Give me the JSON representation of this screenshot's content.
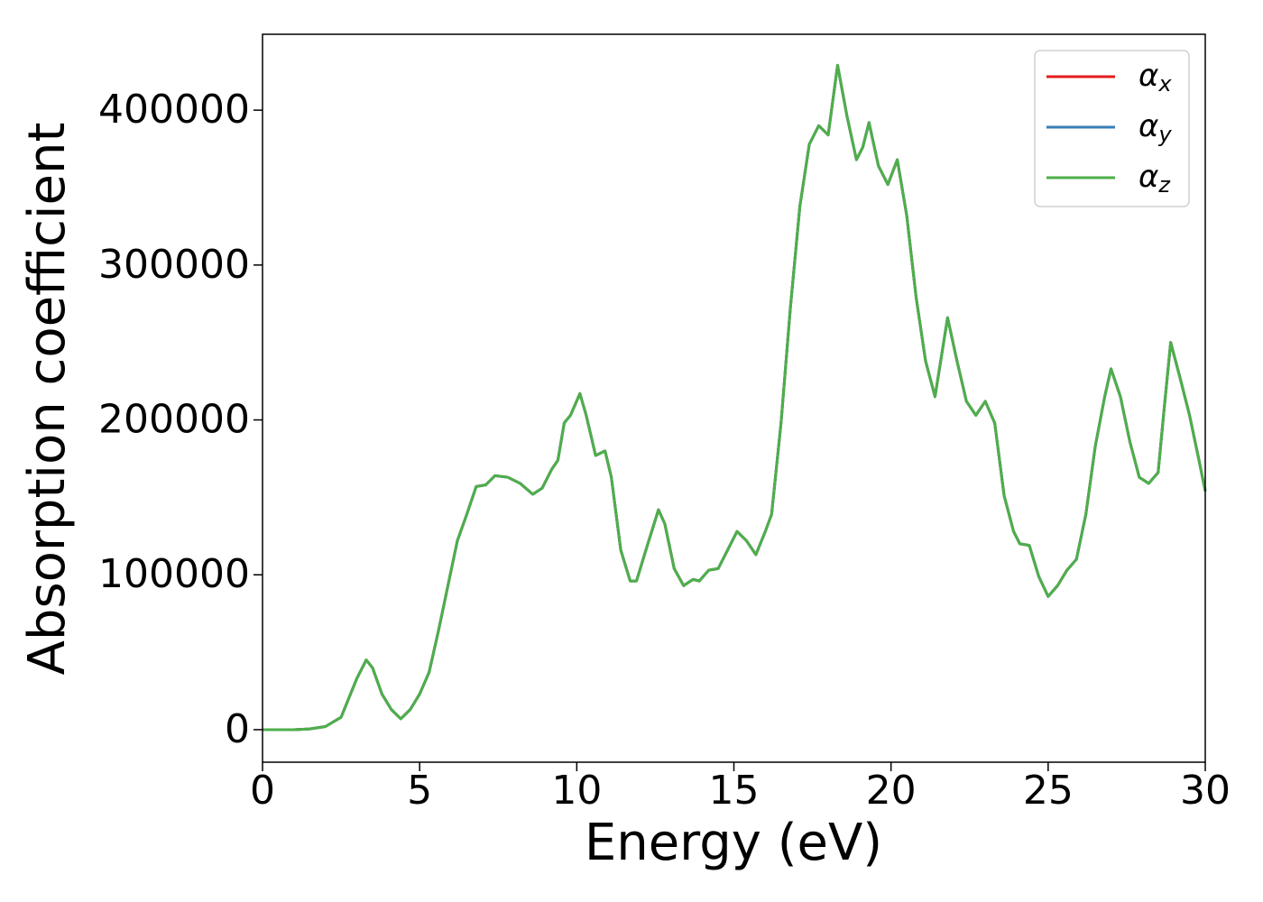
{
  "chart_data": {
    "type": "line",
    "xlabel": "Energy (eV)",
    "ylabel": "Absorption coefficient",
    "x": [
      0,
      1,
      1.5,
      2,
      2.5,
      2.8,
      3.0,
      3.3,
      3.5,
      3.8,
      4.1,
      4.4,
      4.7,
      5.0,
      5.3,
      5.6,
      5.9,
      6.2,
      6.5,
      6.8,
      7.1,
      7.4,
      7.8,
      8.2,
      8.6,
      8.9,
      9.2,
      9.4,
      9.6,
      9.8,
      10.1,
      10.3,
      10.6,
      10.9,
      11.1,
      11.4,
      11.7,
      11.9,
      12.2,
      12.6,
      12.8,
      13.1,
      13.4,
      13.7,
      13.9,
      14.2,
      14.5,
      14.8,
      15.1,
      15.4,
      15.7,
      16.0,
      16.2,
      16.5,
      16.8,
      17.1,
      17.4,
      17.7,
      18.0,
      18.3,
      18.6,
      18.9,
      19.1,
      19.3,
      19.6,
      19.9,
      20.2,
      20.5,
      20.8,
      21.1,
      21.4,
      21.8,
      22.1,
      22.4,
      22.7,
      23.0,
      23.3,
      23.6,
      23.9,
      24.1,
      24.4,
      24.7,
      25.0,
      25.3,
      25.6,
      25.9,
      26.2,
      26.5,
      26.8,
      27.0,
      27.3,
      27.6,
      27.9,
      28.2,
      28.5,
      28.7,
      28.9,
      29.2,
      29.5,
      29.8,
      30.0
    ],
    "series": [
      {
        "name": "αx",
        "color": "#e41a1c",
        "values": [
          0,
          0,
          500,
          2000,
          8000,
          23000,
          33000,
          45000,
          40000,
          23000,
          13000,
          7000,
          13000,
          23000,
          37000,
          64000,
          93000,
          122000,
          139000,
          157000,
          158000,
          164000,
          163000,
          159000,
          152000,
          156000,
          168000,
          174000,
          198000,
          203000,
          217000,
          203000,
          177000,
          180000,
          163000,
          116000,
          96000,
          96000,
          116000,
          142000,
          133000,
          104000,
          93000,
          97000,
          96000,
          103000,
          104000,
          116000,
          128000,
          122000,
          113000,
          128000,
          139000,
          198000,
          273000,
          338000,
          378000,
          390000,
          384000,
          429000,
          396000,
          368000,
          376000,
          392000,
          364000,
          352000,
          368000,
          332000,
          279000,
          238000,
          215000,
          266000,
          238000,
          212000,
          203000,
          212000,
          198000,
          151000,
          128000,
          120000,
          119000,
          99000,
          86000,
          93000,
          103000,
          110000,
          139000,
          183000,
          215000,
          233000,
          215000,
          186000,
          163000,
          159000,
          166000,
          209000,
          250000,
          227000,
          203000,
          174000,
          154000
        ]
      },
      {
        "name": "αy",
        "color": "#377eb8",
        "values": [
          0,
          0,
          500,
          2000,
          8000,
          23000,
          33000,
          45000,
          40000,
          23000,
          13000,
          7000,
          13000,
          23000,
          37000,
          64000,
          93000,
          122000,
          139000,
          157000,
          158000,
          164000,
          163000,
          159000,
          152000,
          156000,
          168000,
          174000,
          198000,
          203000,
          217000,
          203000,
          177000,
          180000,
          163000,
          116000,
          96000,
          96000,
          116000,
          142000,
          133000,
          104000,
          93000,
          97000,
          96000,
          103000,
          104000,
          116000,
          128000,
          122000,
          113000,
          128000,
          139000,
          198000,
          273000,
          338000,
          378000,
          390000,
          384000,
          429000,
          396000,
          368000,
          376000,
          392000,
          364000,
          352000,
          368000,
          332000,
          279000,
          238000,
          215000,
          266000,
          238000,
          212000,
          203000,
          212000,
          198000,
          151000,
          128000,
          120000,
          119000,
          99000,
          86000,
          93000,
          103000,
          110000,
          139000,
          183000,
          215000,
          233000,
          215000,
          186000,
          163000,
          159000,
          166000,
          209000,
          250000,
          227000,
          203000,
          174000,
          154000
        ]
      },
      {
        "name": "αz",
        "color": "#4daf4a",
        "values": [
          0,
          0,
          500,
          2000,
          8000,
          23000,
          33000,
          45000,
          40000,
          23000,
          13000,
          7000,
          13000,
          23000,
          37000,
          64000,
          93000,
          122000,
          139000,
          157000,
          158000,
          164000,
          163000,
          159000,
          152000,
          156000,
          168000,
          174000,
          198000,
          203000,
          217000,
          203000,
          177000,
          180000,
          163000,
          116000,
          96000,
          96000,
          116000,
          142000,
          133000,
          104000,
          93000,
          97000,
          96000,
          103000,
          104000,
          116000,
          128000,
          122000,
          113000,
          128000,
          139000,
          198000,
          273000,
          338000,
          378000,
          390000,
          384000,
          429000,
          396000,
          368000,
          376000,
          392000,
          364000,
          352000,
          368000,
          332000,
          279000,
          238000,
          215000,
          266000,
          238000,
          212000,
          203000,
          212000,
          198000,
          151000,
          128000,
          120000,
          119000,
          99000,
          86000,
          93000,
          103000,
          110000,
          139000,
          183000,
          215000,
          233000,
          215000,
          186000,
          163000,
          159000,
          166000,
          209000,
          250000,
          227000,
          203000,
          174000,
          154000
        ]
      }
    ],
    "xlim": [
      0,
      30
    ],
    "xticks": [
      0,
      5,
      10,
      15,
      20,
      25,
      30
    ],
    "ylim": [
      -21000,
      449000
    ],
    "yticks": [
      0,
      100000,
      200000,
      300000,
      400000
    ],
    "legend": "upper right"
  }
}
